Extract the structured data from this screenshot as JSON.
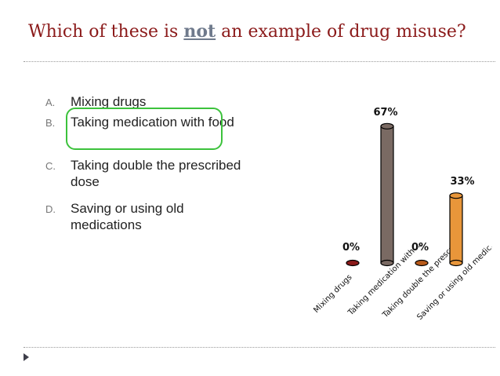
{
  "slide": {
    "title_before": "Which of these is ",
    "title_emphasis": "not",
    "title_after": " an example of drug misuse?"
  },
  "options": [
    {
      "letter": "A.",
      "text": "Mixing drugs"
    },
    {
      "letter": "B.",
      "text": "Taking medication with food"
    },
    {
      "letter": "C.",
      "text": "Taking double the prescribed dose"
    },
    {
      "letter": "D.",
      "text": "Saving or using old medications"
    }
  ],
  "colors": {
    "title": "#8b1a1a",
    "emphasis": "#6f7a8c",
    "highlight_circle": "#3cc23c"
  },
  "chart_data": {
    "type": "bar",
    "categories": [
      "Mixing drugs",
      "Taking medication with ...",
      "Taking double the prescr...",
      "Saving or using old medic..."
    ],
    "values": [
      0,
      67,
      0,
      33
    ],
    "value_labels": [
      "0%",
      "67%",
      "0%",
      "33%"
    ],
    "colors": [
      "#8b1a1a",
      "#7a6a63",
      "#b85a1a",
      "#e8963a"
    ],
    "ylim": [
      0,
      100
    ],
    "grid": false,
    "title": "",
    "xlabel": "",
    "ylabel": ""
  }
}
